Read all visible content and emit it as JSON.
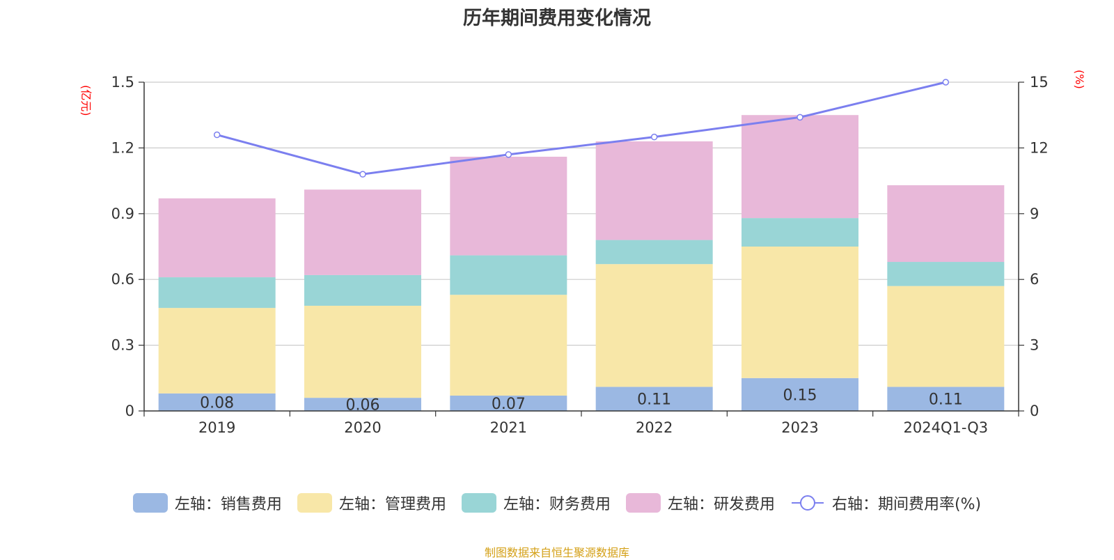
{
  "chart_data": {
    "type": "bar",
    "title": "历年期间费用变化情况",
    "left_unit": "(亿元)",
    "right_unit": "(%)",
    "categories": [
      "2019",
      "2020",
      "2021",
      "2022",
      "2023",
      "2024Q1-Q3"
    ],
    "ylim": [
      0,
      1.5
    ],
    "y_ticks": [
      "0",
      "0.3",
      "0.6",
      "0.9",
      "1.2",
      "1.5"
    ],
    "y2lim": [
      0,
      15
    ],
    "y2_ticks": [
      "0",
      "3",
      "6",
      "9",
      "12",
      "15"
    ],
    "stacked": true,
    "series": [
      {
        "name": "左轴：销售费用",
        "axis": "left",
        "type": "bar",
        "color": "#9bb8e3",
        "values": [
          0.08,
          0.06,
          0.07,
          0.11,
          0.15,
          0.11
        ],
        "labels": [
          "0.08",
          "0.06",
          "0.07",
          "0.11",
          "0.15",
          "0.11"
        ]
      },
      {
        "name": "左轴：管理费用",
        "axis": "left",
        "type": "bar",
        "color": "#f8e7a8",
        "values": [
          0.39,
          0.42,
          0.46,
          0.56,
          0.6,
          0.46
        ]
      },
      {
        "name": "左轴：财务费用",
        "axis": "left",
        "type": "bar",
        "color": "#99d5d6",
        "values": [
          0.14,
          0.14,
          0.18,
          0.11,
          0.13,
          0.11
        ]
      },
      {
        "name": "左轴：研发费用",
        "axis": "left",
        "type": "bar",
        "color": "#e8b8d9",
        "values": [
          0.36,
          0.39,
          0.45,
          0.45,
          0.47,
          0.35
        ]
      },
      {
        "name": "右轴：期间费用率(%)",
        "axis": "right",
        "type": "line",
        "color": "#7b7fef",
        "values": [
          12.6,
          10.8,
          11.7,
          12.5,
          13.4,
          15.0
        ]
      }
    ],
    "grid": true,
    "legend_position": "bottom"
  },
  "source": "制图数据来自恒生聚源数据库"
}
